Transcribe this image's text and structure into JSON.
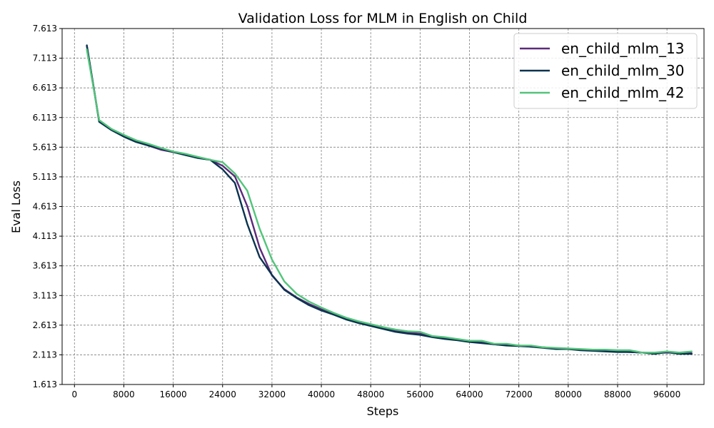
{
  "chart_data": {
    "type": "line",
    "title": "Validation Loss for MLM in English on Child",
    "xlabel": "Steps",
    "ylabel": "Eval Loss",
    "xlim": [
      -2000,
      102000
    ],
    "ylim": [
      1.613,
      7.613
    ],
    "xticks": [
      0,
      8000,
      16000,
      24000,
      32000,
      40000,
      48000,
      56000,
      64000,
      72000,
      80000,
      88000,
      96000
    ],
    "yticks": [
      1.613,
      2.113,
      2.613,
      3.113,
      3.613,
      4.113,
      4.613,
      5.113,
      5.613,
      6.113,
      6.613,
      7.113,
      7.613
    ],
    "xtick_labels": [
      "0",
      "8000",
      "16000",
      "24000",
      "32000",
      "40000",
      "48000",
      "56000",
      "64000",
      "72000",
      "80000",
      "88000",
      "96000"
    ],
    "ytick_labels": [
      "1.613",
      "2.113",
      "2.613",
      "3.113",
      "3.613",
      "4.113",
      "4.613",
      "5.113",
      "5.613",
      "6.113",
      "6.613",
      "7.113",
      "7.613"
    ],
    "grid": true,
    "legend_position": "top-right",
    "series": [
      {
        "name": "en_child_mlm_13",
        "color": "#5b2a7a",
        "x": [
          2000,
          4000,
          6000,
          8000,
          10000,
          12000,
          14000,
          16000,
          18000,
          20000,
          22000,
          24000,
          26000,
          28000,
          30000,
          32000,
          34000,
          36000,
          38000,
          40000,
          42000,
          44000,
          46000,
          48000,
          50000,
          52000,
          54000,
          56000,
          58000,
          60000,
          62000,
          64000,
          66000,
          68000,
          70000,
          72000,
          74000,
          76000,
          78000,
          80000,
          82000,
          84000,
          86000,
          88000,
          90000,
          92000,
          94000,
          96000,
          98000,
          100000
        ],
        "y": [
          7.32,
          6.06,
          5.91,
          5.81,
          5.71,
          5.64,
          5.57,
          5.53,
          5.49,
          5.44,
          5.4,
          5.3,
          5.12,
          4.62,
          3.92,
          3.45,
          3.22,
          3.08,
          2.97,
          2.88,
          2.8,
          2.72,
          2.66,
          2.61,
          2.56,
          2.52,
          2.49,
          2.47,
          2.42,
          2.39,
          2.37,
          2.34,
          2.32,
          2.29,
          2.28,
          2.27,
          2.25,
          2.24,
          2.22,
          2.21,
          2.2,
          2.19,
          2.18,
          2.17,
          2.16,
          2.15,
          2.14,
          2.15,
          2.14,
          2.14
        ]
      },
      {
        "name": "en_child_mlm_30",
        "color": "#0b3350",
        "x": [
          2000,
          4000,
          6000,
          8000,
          10000,
          12000,
          14000,
          16000,
          18000,
          20000,
          22000,
          24000,
          26000,
          28000,
          30000,
          32000,
          34000,
          36000,
          38000,
          40000,
          42000,
          44000,
          46000,
          48000,
          50000,
          52000,
          54000,
          56000,
          58000,
          60000,
          62000,
          64000,
          66000,
          68000,
          70000,
          72000,
          74000,
          76000,
          78000,
          80000,
          82000,
          84000,
          86000,
          88000,
          90000,
          92000,
          94000,
          96000,
          98000,
          100000
        ],
        "y": [
          7.33,
          6.04,
          5.9,
          5.79,
          5.7,
          5.64,
          5.59,
          5.53,
          5.48,
          5.43,
          5.4,
          5.24,
          5.01,
          4.32,
          3.76,
          3.46,
          3.21,
          3.07,
          2.95,
          2.86,
          2.79,
          2.71,
          2.65,
          2.6,
          2.55,
          2.5,
          2.47,
          2.45,
          2.41,
          2.38,
          2.36,
          2.33,
          2.31,
          2.29,
          2.27,
          2.26,
          2.25,
          2.23,
          2.21,
          2.21,
          2.19,
          2.18,
          2.17,
          2.16,
          2.16,
          2.15,
          2.13,
          2.16,
          2.13,
          2.13
        ]
      },
      {
        "name": "en_child_mlm_42",
        "color": "#52c47a",
        "x": [
          2000,
          4000,
          6000,
          8000,
          10000,
          12000,
          14000,
          16000,
          18000,
          20000,
          22000,
          24000,
          26000,
          28000,
          30000,
          32000,
          34000,
          36000,
          38000,
          40000,
          42000,
          44000,
          46000,
          48000,
          50000,
          52000,
          54000,
          56000,
          58000,
          60000,
          62000,
          64000,
          66000,
          68000,
          70000,
          72000,
          74000,
          76000,
          78000,
          80000,
          82000,
          84000,
          86000,
          88000,
          90000,
          92000,
          94000,
          96000,
          98000,
          100000
        ],
        "y": [
          7.26,
          6.07,
          5.92,
          5.82,
          5.73,
          5.67,
          5.6,
          5.54,
          5.5,
          5.45,
          5.4,
          5.36,
          5.17,
          4.88,
          4.24,
          3.72,
          3.35,
          3.14,
          3.01,
          2.91,
          2.82,
          2.74,
          2.68,
          2.63,
          2.58,
          2.54,
          2.51,
          2.5,
          2.43,
          2.41,
          2.38,
          2.35,
          2.35,
          2.3,
          2.3,
          2.27,
          2.27,
          2.24,
          2.23,
          2.22,
          2.21,
          2.2,
          2.2,
          2.19,
          2.19,
          2.15,
          2.15,
          2.17,
          2.15,
          2.17
        ]
      }
    ]
  }
}
